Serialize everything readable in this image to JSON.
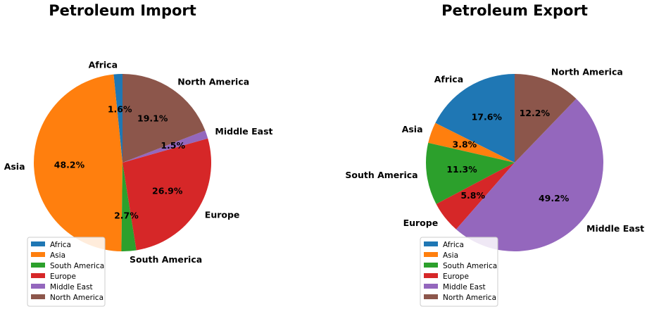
{
  "chart_data": [
    {
      "type": "pie",
      "title": "Petroleum Import",
      "categories": [
        "Africa",
        "Asia",
        "South America",
        "Europe",
        "Middle East",
        "North America"
      ],
      "values": [
        1.6,
        48.2,
        2.7,
        26.9,
        1.5,
        19.1
      ],
      "value_labels": [
        "1.6%",
        "48.2%",
        "2.7%",
        "26.9%",
        "1.5%",
        "19.1%"
      ],
      "start_angle_deg": 90,
      "direction": "counterclockwise",
      "legend_placement": "lower-left"
    },
    {
      "type": "pie",
      "title": "Petroleum Export",
      "categories": [
        "Africa",
        "Asia",
        "South America",
        "Europe",
        "Middle East",
        "North America"
      ],
      "values": [
        17.6,
        3.8,
        11.3,
        5.8,
        49.2,
        12.2
      ],
      "value_labels": [
        "17.6%",
        "3.8%",
        "11.3%",
        "5.8%",
        "49.2%",
        "12.2%"
      ],
      "start_angle_deg": 90,
      "direction": "counterclockwise",
      "legend_placement": "lower-left"
    }
  ],
  "colors": [
    "#1f77b4",
    "#ff7f0e",
    "#2ca02c",
    "#d62728",
    "#9467bd",
    "#8c564b"
  ]
}
